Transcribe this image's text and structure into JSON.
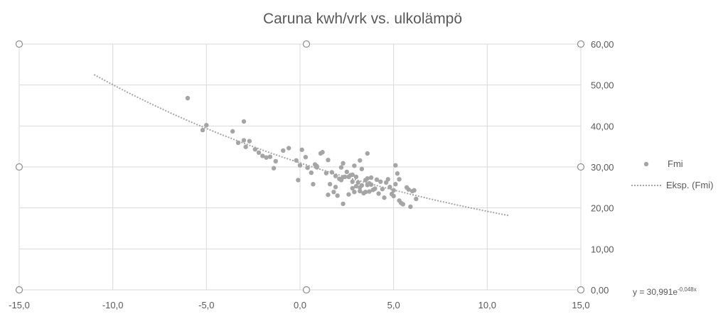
{
  "chart_data": {
    "type": "scatter",
    "title": "Caruna kwh/vrk vs. ulkolämpö",
    "xlabel": "",
    "ylabel": "",
    "xlim": [
      -15,
      15
    ],
    "ylim": [
      0,
      60
    ],
    "x_ticks": [
      -15,
      -10,
      -5,
      0,
      5,
      10,
      15
    ],
    "x_tick_labels": [
      "-15,0",
      "-10,0",
      "-5,0",
      "0,0",
      "5,0",
      "10,0",
      "15,0"
    ],
    "y_ticks": [
      0,
      10,
      20,
      30,
      40,
      50,
      60
    ],
    "y_tick_labels": [
      "0,00",
      "10,00",
      "20,00",
      "30,00",
      "40,00",
      "50,00",
      "60,00"
    ],
    "y_axis_side": "right",
    "grid": true,
    "legend_position": "right",
    "series": [
      {
        "name": "Fmi",
        "color": "#a5a5a5",
        "marker": "circle",
        "x": [
          -6.0,
          -5.0,
          -5.2,
          -3.0,
          -3.6,
          -3.3,
          -3.0,
          -2.7,
          -2.9,
          -2.4,
          -2.2,
          -2.0,
          -1.8,
          -1.4,
          -1.3,
          -1.6,
          -0.9,
          -0.6,
          -0.2,
          0.0,
          -0.1,
          0.1,
          0.3,
          0.4,
          0.6,
          0.7,
          0.8,
          1.1,
          1.2,
          0.9,
          0.9,
          1.4,
          1.5,
          1.6,
          1.7,
          1.8,
          1.9,
          2.0,
          2.1,
          2.2,
          2.2,
          2.3,
          2.3,
          2.4,
          2.5,
          2.6,
          2.6,
          2.7,
          2.8,
          2.8,
          2.9,
          2.9,
          3.0,
          3.0,
          3.1,
          3.2,
          3.2,
          3.3,
          3.3,
          3.4,
          3.5,
          3.5,
          3.6,
          3.6,
          3.7,
          3.7,
          3.8,
          3.8,
          3.9,
          4.0,
          4.1,
          4.2,
          4.3,
          4.4,
          4.5,
          4.6,
          4.7,
          4.8,
          4.9,
          5.0,
          5.0,
          5.1,
          5.1,
          5.2,
          5.3,
          5.4,
          5.5,
          5.7,
          5.8,
          5.9,
          6.0,
          6.1,
          6.2,
          1.5,
          2.3,
          2.8,
          3.2,
          5.3,
          3.6,
          1.9
        ],
        "y": [
          46.8,
          40.2,
          39.0,
          41.1,
          38.7,
          35.9,
          36.5,
          36.3,
          34.9,
          34.3,
          33.5,
          32.7,
          32.3,
          29.7,
          31.4,
          32.5,
          34.0,
          34.6,
          31.6,
          30.4,
          26.8,
          34.2,
          32.4,
          29.8,
          28.6,
          25.8,
          30.6,
          33.3,
          33.6,
          29.9,
          30.2,
          28.5,
          23.2,
          25.8,
          28.7,
          23.9,
          27.8,
          23.0,
          27.1,
          29.9,
          26.8,
          27.5,
          30.9,
          27.6,
          28.8,
          23.3,
          27.6,
          28.0,
          24.8,
          26.4,
          30.3,
          23.9,
          25.3,
          27.6,
          26.2,
          25.0,
          24.1,
          25.5,
          29.5,
          23.6,
          26.8,
          23.9,
          25.6,
          27.2,
          24.0,
          26.0,
          25.7,
          27.4,
          24.4,
          24.7,
          26.9,
          23.5,
          26.4,
          24.6,
          22.5,
          26.2,
          27.0,
          25.1,
          23.4,
          24.3,
          22.9,
          25.8,
          30.4,
          28.4,
          21.8,
          21.2,
          20.9,
          25.0,
          24.5,
          20.3,
          24.1,
          24.3,
          22.2,
          31.7,
          21.0,
          28.1,
          31.6,
          27.0,
          33.3,
          25.1
        ]
      },
      {
        "name": "Eksp. (Fmi)",
        "color": "#a5a5a5",
        "line_style": "dotted",
        "trend_type": "exponential",
        "equation_coefficient": 30.991,
        "equation_exponent": -0.048,
        "x_range": [
          -11.0,
          11.2
        ]
      }
    ],
    "equation_label_prefix": "y = 30,991e",
    "equation_label_exponent": "-0,048x"
  }
}
